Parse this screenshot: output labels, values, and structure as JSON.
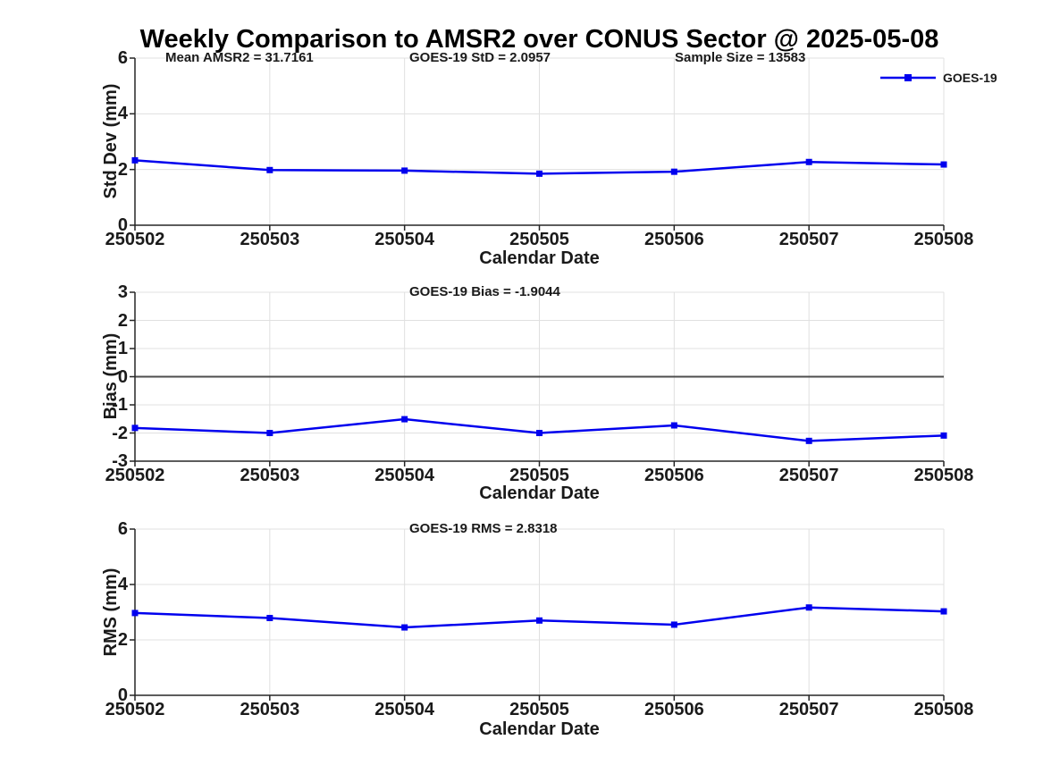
{
  "title": "Weekly Comparison to AMSR2 over CONUS Sector @ 2025-05-08",
  "legend": {
    "series": "GOES-19"
  },
  "colors": {
    "line": "#0000ee",
    "grid": "#e0e0e0",
    "axis": "#262626",
    "zero_line": "#4d4d4d",
    "text": "#1a1a1a"
  },
  "chart_data": [
    {
      "type": "line",
      "name": "std-dev-panel",
      "title": "",
      "ylabel": "Std Dev (mm)",
      "xlabel": "Calendar Date",
      "categories": [
        "250502",
        "250503",
        "250504",
        "250505",
        "250506",
        "250507",
        "250508"
      ],
      "series": [
        {
          "name": "GOES-19",
          "values": [
            2.33,
            1.98,
            1.96,
            1.85,
            1.92,
            2.27,
            2.18
          ]
        }
      ],
      "ylim": [
        0,
        6
      ],
      "yticks": [
        0,
        2,
        4,
        6
      ],
      "grid": true,
      "legend_position": "top-right",
      "annotations": [
        "Mean AMSR2 = 31.7161",
        "GOES-19 StD = 2.0957",
        "Sample Size = 13583"
      ]
    },
    {
      "type": "line",
      "name": "bias-panel",
      "title": "",
      "ylabel": "Bias (mm)",
      "xlabel": "Calendar Date",
      "categories": [
        "250502",
        "250503",
        "250504",
        "250505",
        "250506",
        "250507",
        "250508"
      ],
      "series": [
        {
          "name": "GOES-19",
          "values": [
            -1.82,
            -2.0,
            -1.51,
            -2.0,
            -1.73,
            -2.28,
            -2.09
          ]
        }
      ],
      "ylim": [
        -3,
        3
      ],
      "yticks": [
        -3,
        -2,
        -1,
        0,
        1,
        2,
        3
      ],
      "grid": true,
      "zero_line": true,
      "annotations": [
        "GOES-19 Bias  = -1.9044"
      ]
    },
    {
      "type": "line",
      "name": "rms-panel",
      "title": "",
      "ylabel": "RMS (mm)",
      "xlabel": "Calendar Date",
      "categories": [
        "250502",
        "250503",
        "250504",
        "250505",
        "250506",
        "250507",
        "250508"
      ],
      "series": [
        {
          "name": "GOES-19",
          "values": [
            2.97,
            2.79,
            2.45,
            2.7,
            2.55,
            3.17,
            3.03
          ]
        }
      ],
      "ylim": [
        0,
        6
      ],
      "yticks": [
        0,
        2,
        4,
        6
      ],
      "grid": true,
      "annotations": [
        "GOES-19 RMS = 2.8318"
      ]
    }
  ]
}
